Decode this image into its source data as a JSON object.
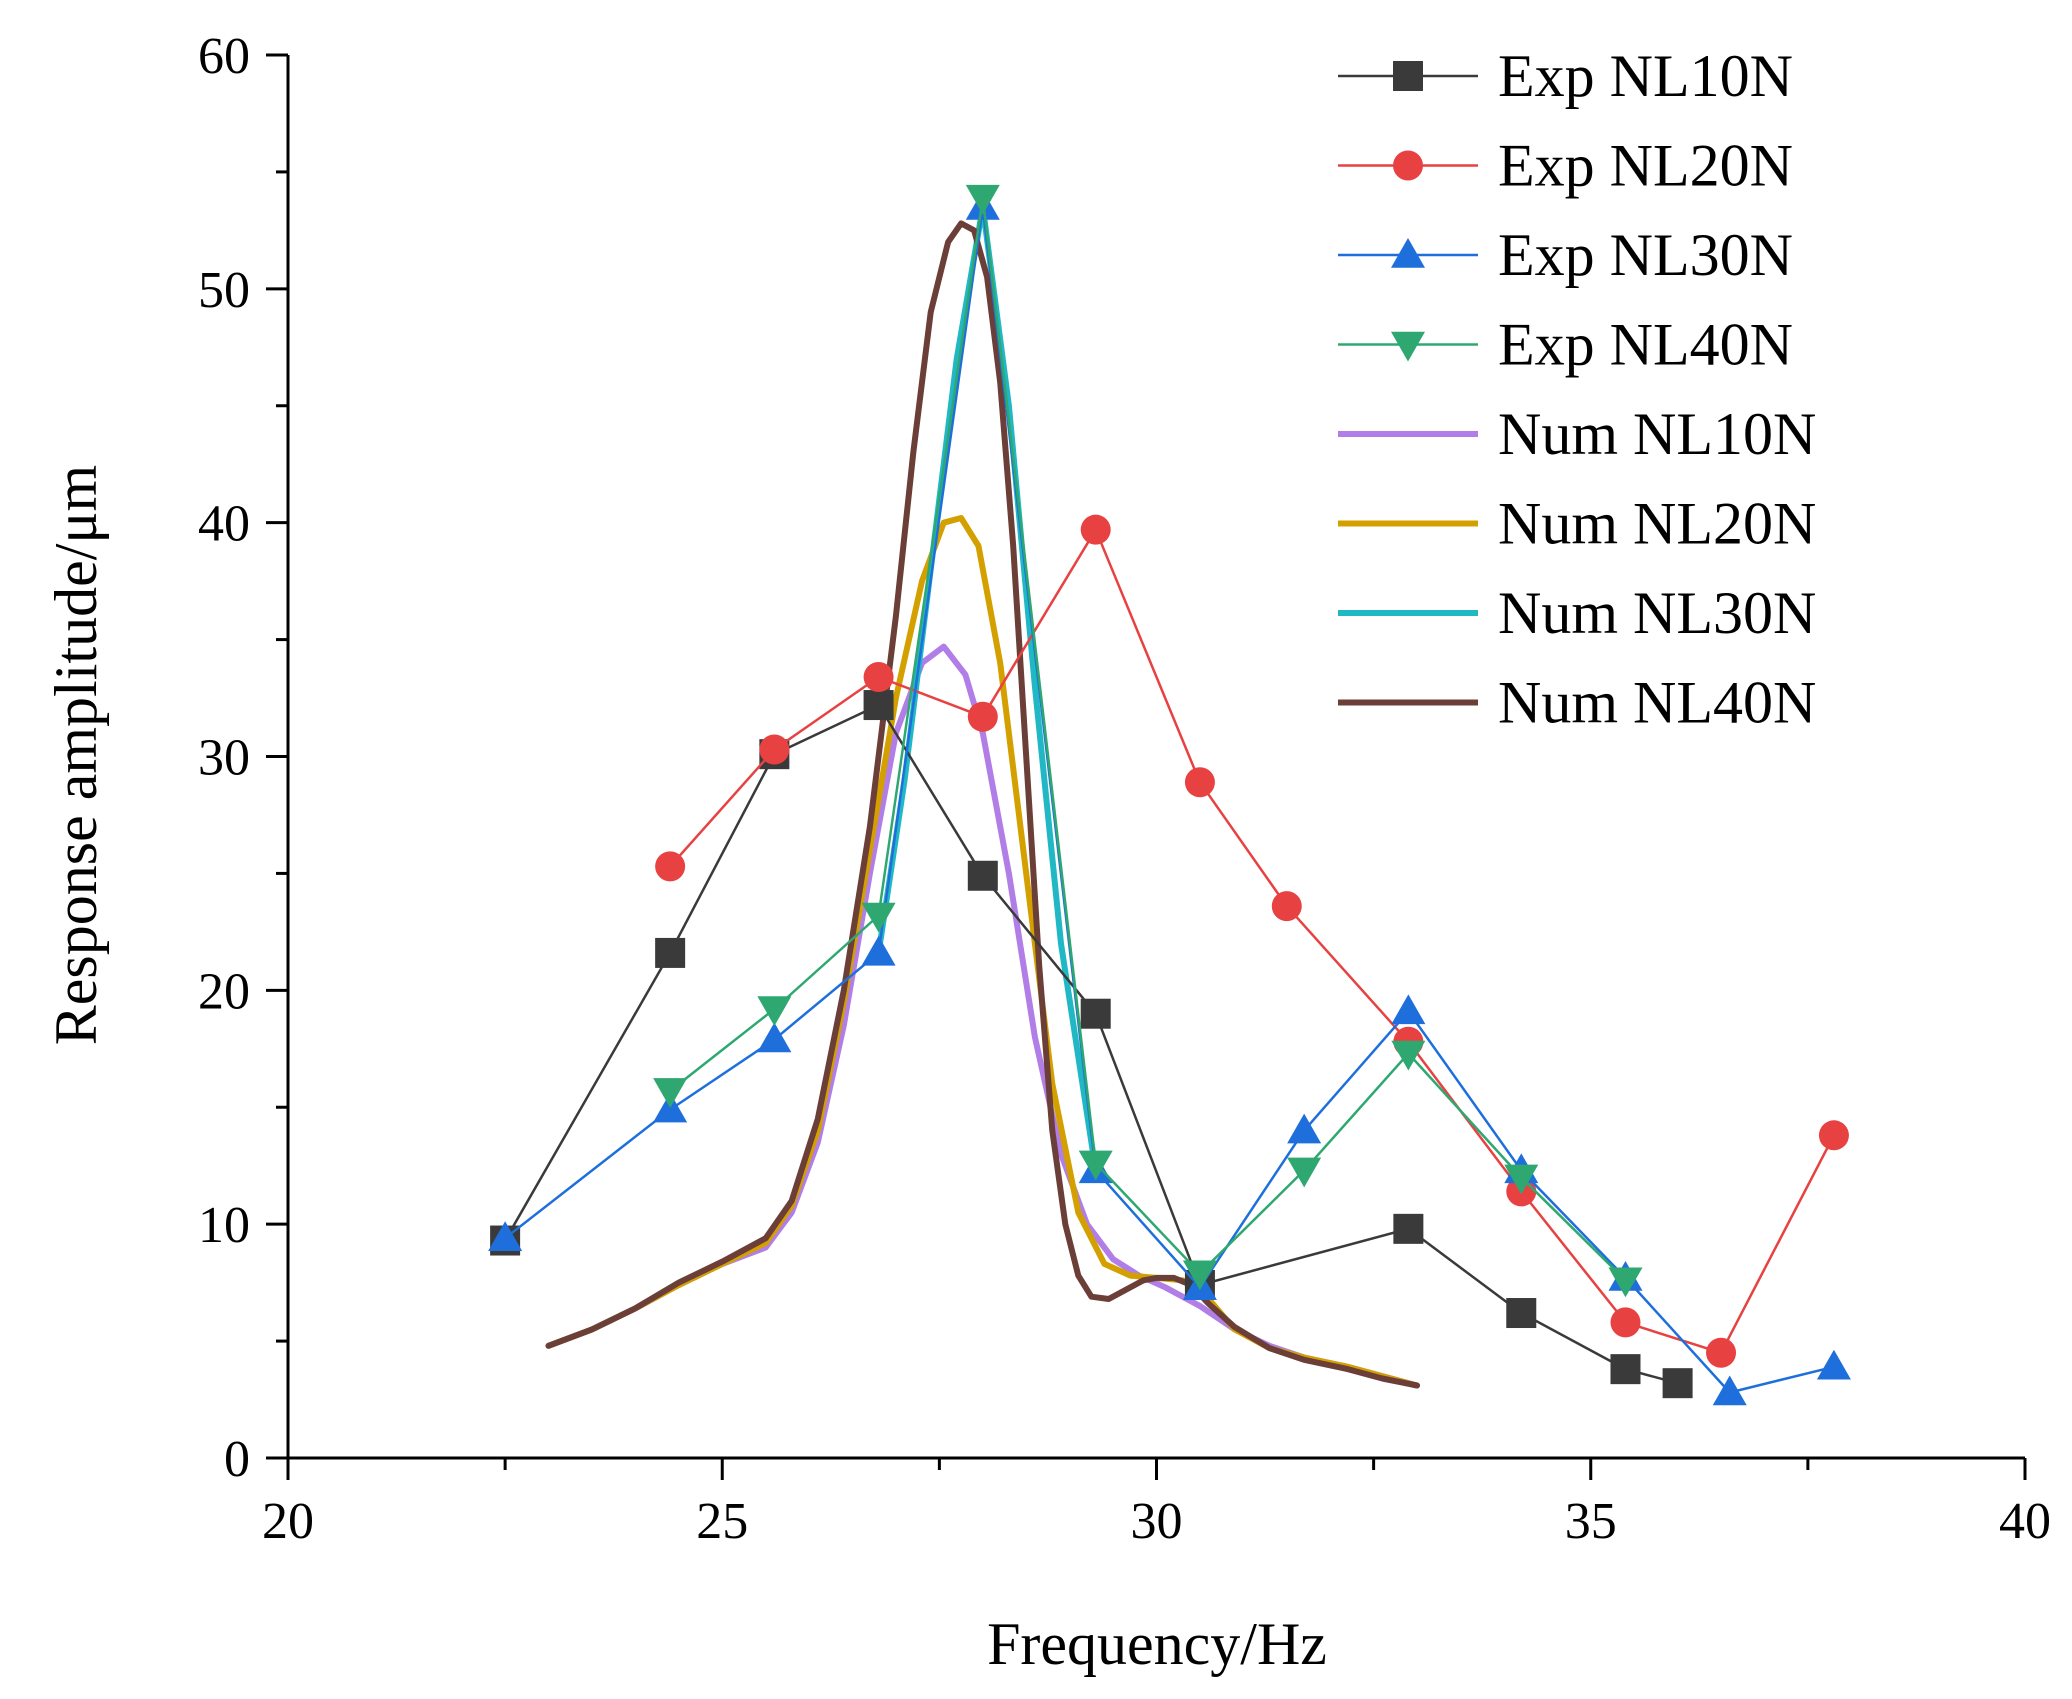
{
  "chart_data": {
    "type": "line",
    "title": "",
    "xlabel": "Frequency/Hz",
    "ylabel": "Response amplitude/μm",
    "xlim": [
      20,
      40
    ],
    "ylim": [
      0,
      60
    ],
    "xticks": [
      20,
      25,
      30,
      35,
      40
    ],
    "yticks": [
      0,
      10,
      20,
      30,
      40,
      50,
      60
    ],
    "legend_position": "top-right",
    "series": [
      {
        "name": "Exp NL10N",
        "kind": "markers",
        "marker": "square",
        "color": "#3a3a3a",
        "x": [
          22.5,
          24.4,
          25.6,
          26.8,
          28.0,
          29.3,
          30.5,
          32.9,
          34.2,
          35.4,
          36.0
        ],
        "y": [
          9.3,
          21.6,
          30.1,
          32.2,
          24.9,
          19.0,
          7.4,
          9.8,
          6.2,
          3.8,
          3.2
        ]
      },
      {
        "name": "Exp NL20N",
        "kind": "markers",
        "marker": "circle",
        "color": "#e84141",
        "x": [
          24.4,
          25.6,
          26.8,
          28.0,
          29.3,
          30.5,
          31.5,
          32.9,
          34.2,
          35.4,
          36.5,
          37.8
        ],
        "y": [
          25.3,
          30.3,
          33.4,
          31.7,
          39.7,
          28.9,
          23.6,
          17.8,
          11.4,
          5.8,
          4.5,
          13.8
        ]
      },
      {
        "name": "Exp NL30N",
        "kind": "markers",
        "marker": "triangle-up",
        "color": "#1e6fdc",
        "x": [
          22.5,
          24.4,
          25.6,
          26.8,
          28.0,
          29.3,
          30.5,
          31.7,
          32.9,
          34.2,
          35.4,
          36.6,
          37.8
        ],
        "y": [
          9.4,
          14.9,
          17.9,
          21.6,
          53.5,
          12.3,
          7.3,
          14.0,
          19.1,
          12.3,
          7.7,
          2.8,
          3.9
        ]
      },
      {
        "name": "Exp NL40N",
        "kind": "markers",
        "marker": "triangle-down",
        "color": "#2ea870",
        "x": [
          24.4,
          25.6,
          26.8,
          28.0,
          29.3,
          30.5,
          31.7,
          32.9,
          34.2,
          35.4
        ],
        "y": [
          15.7,
          19.2,
          23.2,
          53.9,
          12.6,
          7.9,
          12.3,
          17.3,
          12.0,
          7.6
        ]
      },
      {
        "name": "Num NL10N",
        "kind": "line",
        "color": "#b07ee6",
        "x": [
          23.0,
          23.5,
          24.0,
          24.5,
          25.0,
          25.5,
          25.8,
          26.1,
          26.4,
          26.7,
          27.0,
          27.3,
          27.55,
          27.8,
          28.0,
          28.3,
          28.6,
          28.9,
          29.2,
          29.5,
          29.8,
          30.1,
          30.5,
          30.9,
          31.3,
          31.7,
          32.2,
          32.6,
          33.0
        ],
        "y": [
          4.8,
          5.5,
          6.4,
          7.4,
          8.3,
          9.0,
          10.5,
          13.5,
          18.5,
          25.0,
          31.0,
          34.0,
          34.7,
          33.5,
          31.0,
          25.0,
          18.0,
          13.0,
          10.0,
          8.5,
          7.8,
          7.3,
          6.5,
          5.5,
          4.8,
          4.3,
          3.9,
          3.5,
          3.1
        ]
      },
      {
        "name": "Num NL20N",
        "kind": "line",
        "color": "#d4a000",
        "x": [
          23.0,
          23.5,
          24.0,
          24.5,
          25.0,
          25.5,
          25.8,
          26.1,
          26.4,
          26.7,
          27.0,
          27.3,
          27.55,
          27.75,
          27.95,
          28.2,
          28.5,
          28.8,
          29.1,
          29.4,
          29.7,
          30.0,
          30.3,
          30.6,
          30.9,
          31.3,
          31.7,
          32.2,
          32.6,
          33.0
        ],
        "y": [
          4.8,
          5.5,
          6.4,
          7.4,
          8.3,
          9.2,
          10.8,
          14.0,
          19.5,
          26.0,
          32.5,
          37.5,
          40.0,
          40.2,
          39.0,
          34.0,
          25.0,
          16.0,
          10.5,
          8.3,
          7.8,
          7.7,
          7.6,
          6.8,
          5.5,
          4.7,
          4.3,
          3.9,
          3.5,
          3.1
        ]
      },
      {
        "name": "Num NL30N",
        "kind": "line",
        "color": "#20b8c4",
        "x": [
          26.8,
          27.1,
          27.4,
          27.7,
          28.0,
          28.3,
          28.6,
          28.9,
          29.3
        ],
        "y": [
          21.6,
          29.0,
          38.0,
          47.0,
          53.5,
          45.0,
          33.0,
          22.0,
          12.3
        ]
      },
      {
        "name": "Num NL40N",
        "kind": "line",
        "color": "#6b3f38",
        "x": [
          23.0,
          23.5,
          24.0,
          24.5,
          25.0,
          25.5,
          25.8,
          26.1,
          26.4,
          26.7,
          27.0,
          27.2,
          27.4,
          27.6,
          27.75,
          27.9,
          28.05,
          28.2,
          28.35,
          28.5,
          28.65,
          28.8,
          28.95,
          29.1,
          29.25,
          29.45,
          29.65,
          29.85,
          30.0,
          30.2,
          30.4,
          30.6,
          30.9,
          31.3,
          31.7,
          32.2,
          32.6,
          33.0
        ],
        "y": [
          4.8,
          5.5,
          6.4,
          7.5,
          8.4,
          9.4,
          11.0,
          14.5,
          20.0,
          27.0,
          36.0,
          43.0,
          49.0,
          52.0,
          52.8,
          52.5,
          50.5,
          46.0,
          39.0,
          30.0,
          21.0,
          14.0,
          10.0,
          7.8,
          6.9,
          6.8,
          7.2,
          7.6,
          7.7,
          7.7,
          7.4,
          6.6,
          5.6,
          4.7,
          4.2,
          3.8,
          3.4,
          3.1
        ]
      }
    ]
  }
}
